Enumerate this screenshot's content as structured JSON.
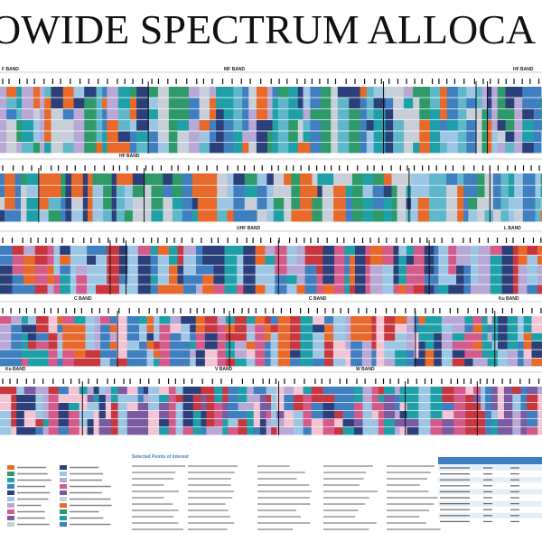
{
  "header": {
    "title": "OWIDE SPECTRUM ALLOCA"
  },
  "rows": [
    {
      "bands": [
        {
          "label": "F BAND"
        },
        {
          "label": "MF BAND"
        },
        {
          "label": "HF BAND"
        }
      ]
    },
    {
      "bands": [
        {
          "label": "HF BAND"
        }
      ]
    },
    {
      "bands": [
        {
          "label": "UHF BAND"
        },
        {
          "label": "L BAND"
        }
      ]
    },
    {
      "bands": [
        {
          "label": "C BAND"
        },
        {
          "label": "C BAND"
        },
        {
          "label": "Ku BAND"
        }
      ]
    },
    {
      "bands": [
        {
          "label": "Ku BAND"
        },
        {
          "label": "V BAND"
        },
        {
          "label": "W BAND"
        }
      ]
    }
  ],
  "legend": {
    "title": "Selected Points of Interest"
  }
}
